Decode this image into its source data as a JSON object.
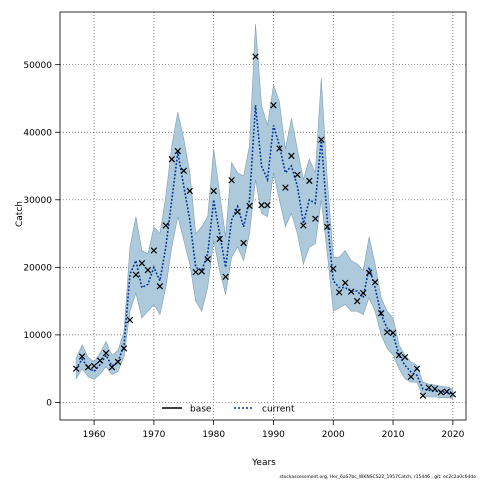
{
  "chart_data": {
    "type": "line",
    "xlabel": "Years",
    "ylabel": "Catch",
    "xlim": [
      1954.3,
      2022.2
    ],
    "ylim": [
      -2600,
      57800
    ],
    "x_ticks": [
      1960,
      1970,
      1980,
      1990,
      2000,
      2010,
      2020
    ],
    "y_ticks": [
      0,
      10000,
      20000,
      30000,
      40000,
      50000
    ],
    "grid": true,
    "legend_position": "bottom",
    "footnote": "stockassessment.org, Her_6aS7bc_WKNSCS22_1957Catch, r15446 , git: ec2c2a0c6dde",
    "colors": {
      "band": "#a8c7da",
      "band_edge": "#7f9eaf",
      "current_line": "#003399",
      "observed": "#000000",
      "base": "#000000"
    },
    "legend": [
      {
        "label": "base",
        "style": "solid",
        "color": "#000000"
      },
      {
        "label": "current",
        "style": "dotted",
        "color": "#003399"
      }
    ],
    "series": [
      {
        "name": "current",
        "x": [
          1957,
          1958,
          1959,
          1960,
          1961,
          1962,
          1963,
          1964,
          1965,
          1966,
          1967,
          1968,
          1969,
          1970,
          1971,
          1972,
          1973,
          1974,
          1975,
          1976,
          1977,
          1978,
          1979,
          1980,
          1981,
          1982,
          1983,
          1984,
          1985,
          1986,
          1987,
          1988,
          1989,
          1990,
          1991,
          1992,
          1993,
          1994,
          1995,
          1996,
          1997,
          1998,
          1999,
          2000,
          2001,
          2002,
          2003,
          2004,
          2005,
          2006,
          2007,
          2008,
          2009,
          2010,
          2011,
          2012,
          2013,
          2014,
          2015,
          2016,
          2017,
          2018,
          2019,
          2020
        ],
        "estimate": [
          5000,
          6400,
          5200,
          4600,
          5600,
          7000,
          5400,
          6000,
          8500,
          19000,
          21000,
          17000,
          17500,
          20000,
          18000,
          23000,
          30000,
          37000,
          32000,
          27000,
          20000,
          19500,
          22000,
          30000,
          25000,
          20000,
          27000,
          29000,
          26000,
          30000,
          44000,
          35000,
          33000,
          41000,
          38000,
          34000,
          35000,
          32000,
          26500,
          30000,
          29500,
          39000,
          27000,
          18000,
          17000,
          17000,
          16500,
          16500,
          15500,
          20000,
          17000,
          13000,
          11000,
          10000,
          7000,
          5500,
          4500,
          4000,
          2000,
          1800,
          1700,
          1600,
          1500,
          1300
        ],
        "lower": [
          3500,
          5000,
          3800,
          3400,
          4200,
          5300,
          4100,
          4600,
          6800,
          13500,
          16200,
          12500,
          13500,
          14500,
          13000,
          17000,
          23000,
          27500,
          24000,
          20500,
          15000,
          13500,
          17000,
          24000,
          19500,
          16000,
          21500,
          23000,
          21000,
          25000,
          33000,
          28000,
          27500,
          34000,
          30000,
          26000,
          28000,
          25000,
          20500,
          23000,
          23500,
          30000,
          22000,
          13500,
          14000,
          14500,
          13500,
          13500,
          13000,
          15500,
          13500,
          10000,
          8000,
          7000,
          5000,
          3500,
          3000,
          3000,
          1000,
          800,
          800,
          700,
          700,
          600
        ],
        "upper": [
          6500,
          8500,
          6700,
          6000,
          7300,
          9000,
          7000,
          7700,
          10500,
          23000,
          27500,
          22500,
          22000,
          26000,
          25000,
          30500,
          38000,
          43000,
          39000,
          34000,
          25000,
          26000,
          27500,
          37500,
          31000,
          24500,
          35500,
          34000,
          33500,
          38000,
          56000,
          44000,
          41000,
          47000,
          44500,
          37500,
          42000,
          37500,
          33000,
          36000,
          34000,
          48000,
          33000,
          21500,
          21500,
          22500,
          21000,
          20500,
          19500,
          24500,
          20500,
          15500,
          13500,
          12500,
          8500,
          7000,
          6000,
          5500,
          3000,
          2700,
          2600,
          2400,
          2300,
          2000
        ]
      },
      {
        "name": "base",
        "x": [
          1957,
          1958,
          1959,
          1960,
          1961,
          1962,
          1963,
          1964,
          1965,
          1966,
          1967,
          1968,
          1969,
          1970,
          1971,
          1972,
          1973,
          1974,
          1975,
          1976,
          1977,
          1978,
          1979,
          1980,
          1981,
          1982,
          1983,
          1984,
          1985,
          1986,
          1987,
          1988,
          1989,
          1990,
          1991,
          1992,
          1993,
          1994,
          1995,
          1996,
          1997,
          1998,
          1999,
          2000,
          2001,
          2002,
          2003,
          2004,
          2005,
          2006,
          2007,
          2008,
          2009,
          2010,
          2011,
          2012,
          2013,
          2014,
          2015,
          2016,
          2017,
          2018,
          2019,
          2020
        ],
        "estimate": [
          5000,
          6400,
          5200,
          4600,
          5600,
          7000,
          5400,
          6000,
          8500,
          19000,
          21000,
          17000,
          17500,
          20000,
          18000,
          23000,
          30000,
          37000,
          32000,
          27000,
          20000,
          19500,
          22000,
          30000,
          25000,
          20000,
          27000,
          29000,
          26000,
          30000,
          44000,
          35000,
          33000,
          41000,
          38000,
          34000,
          35000,
          32000,
          26500,
          30000,
          29500,
          39000,
          27000,
          18000,
          17000,
          17000,
          16500,
          16500,
          15500,
          20000,
          17000,
          13000,
          11000,
          10000,
          7000,
          5500,
          4500,
          4000,
          2000,
          1800,
          1700,
          1600,
          1500,
          1300
        ]
      },
      {
        "name": "observed",
        "x": [
          1957,
          1958,
          1959,
          1960,
          1961,
          1962,
          1963,
          1964,
          1965,
          1966,
          1967,
          1968,
          1969,
          1970,
          1971,
          1972,
          1973,
          1974,
          1975,
          1976,
          1977,
          1978,
          1979,
          1980,
          1981,
          1982,
          1983,
          1984,
          1985,
          1986,
          1987,
          1988,
          1989,
          1990,
          1991,
          1992,
          1993,
          1994,
          1995,
          1996,
          1997,
          1998,
          1999,
          2000,
          2001,
          2002,
          2003,
          2004,
          2005,
          2006,
          2007,
          2008,
          2009,
          2010,
          2011,
          2012,
          2013,
          2014,
          2015,
          2016,
          2017,
          2018,
          2019,
          2020
        ],
        "values": [
          5000,
          6800,
          5200,
          5400,
          6200,
          7300,
          5200,
          6000,
          8000,
          12200,
          18900,
          20600,
          19600,
          22500,
          17200,
          26200,
          36000,
          37200,
          34300,
          31300,
          19300,
          19400,
          21200,
          31300,
          24200,
          18600,
          32900,
          28200,
          23600,
          29100,
          51200,
          29200,
          29200,
          44000,
          37600,
          31800,
          36500,
          33700,
          26200,
          32800,
          27200,
          38900,
          26000,
          19800,
          16300,
          17700,
          16400,
          15000,
          16200,
          19200,
          17800,
          13200,
          10400,
          10300,
          7000,
          6700,
          3800,
          5000,
          1000,
          2200,
          2000,
          1500,
          1600,
          1200
        ]
      }
    ]
  }
}
